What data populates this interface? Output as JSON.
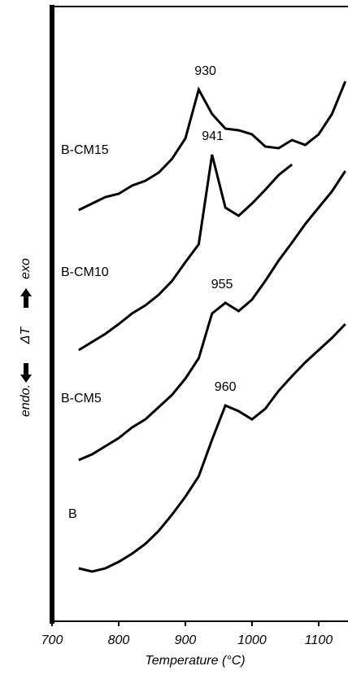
{
  "chart_data": {
    "type": "line",
    "x_label": "Temperature (°C)",
    "y_label": {
      "left": "endo.",
      "middle": "ΔT",
      "right": "exo"
    },
    "x": [
      740,
      760,
      780,
      800,
      820,
      840,
      860,
      880,
      900,
      920,
      940,
      960,
      980,
      1000,
      1020,
      1040,
      1060,
      1080,
      1100,
      1120,
      1140
    ],
    "xlim": [
      700,
      1144
    ],
    "xticks": [
      700,
      800,
      900,
      1000,
      1100
    ],
    "ylim": [
      0,
      755
    ],
    "series": [
      {
        "name": "B-CM15",
        "color": "#000000",
        "peak": 930,
        "values": [
          505,
          513,
          521,
          525,
          535,
          541,
          551,
          568,
          593,
          653,
          623,
          605,
          603,
          598,
          583,
          581,
          591,
          585,
          598,
          623,
          663
        ]
      },
      {
        "name": "B-CM10",
        "color": "#000000",
        "peak": 941,
        "values": [
          333,
          343,
          353,
          365,
          378,
          388,
          401,
          418,
          441,
          463,
          573,
          508,
          498,
          513,
          530,
          548,
          561,
          null,
          null,
          null,
          null
        ]
      },
      {
        "name": "B-CM5",
        "color": "#000000",
        "peak": 955,
        "values": [
          198,
          205,
          215,
          225,
          238,
          248,
          263,
          278,
          298,
          323,
          378,
          391,
          381,
          395,
          418,
          443,
          465,
          488,
          508,
          528,
          553
        ]
      },
      {
        "name": "B",
        "color": "#000000",
        "peak": 960,
        "values": [
          65,
          61,
          65,
          73,
          83,
          95,
          111,
          131,
          153,
          178,
          223,
          265,
          258,
          248,
          261,
          283,
          301,
          318,
          333,
          348,
          365
        ]
      }
    ]
  }
}
